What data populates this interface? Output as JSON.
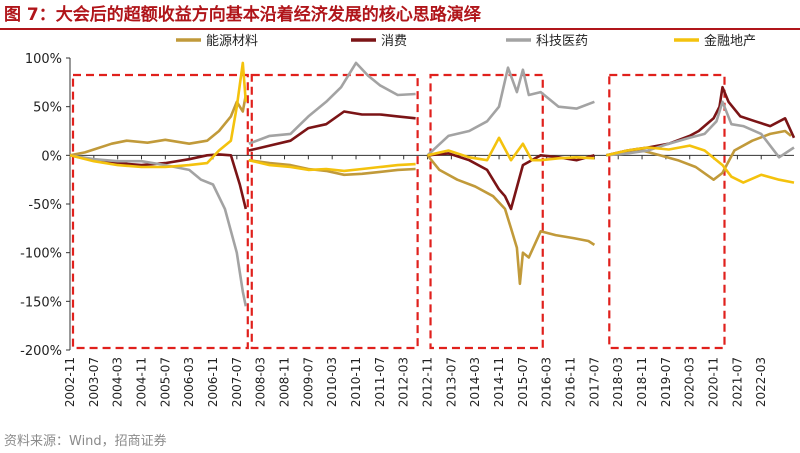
{
  "figure": {
    "title": "图 7：大会后的超额收益方向基本沿着经济发展的核心思路演绎",
    "source": "资料来源：Wind，招商证券"
  },
  "colors": {
    "title": "#b0151a",
    "box": "#e0201c"
  },
  "chart_data": {
    "type": "line",
    "title": "图 7：大会后的超额收益方向基本沿着经济发展的核心思路演绎",
    "xlabel": "",
    "ylabel": "",
    "ylim": [
      -200,
      100
    ],
    "y_ticks": [
      100,
      50,
      0,
      -50,
      -100,
      -150,
      -200
    ],
    "y_tick_labels": [
      "100%",
      "50%",
      "0%",
      "-50%",
      "-100%",
      "-150%",
      "-200%"
    ],
    "x_range": [
      "2002-11",
      "2023-02"
    ],
    "x_tick_labels": [
      "2002-11",
      "2003-07",
      "2004-03",
      "2004-11",
      "2005-07",
      "2006-03",
      "2006-11",
      "2007-07",
      "2008-03",
      "2008-11",
      "2009-07",
      "2010-03",
      "2010-11",
      "2011-07",
      "2012-03",
      "2012-11",
      "2013-07",
      "2014-03",
      "2014-11",
      "2015-07",
      "2016-03",
      "2016-11",
      "2017-07",
      "2018-03",
      "2018-11",
      "2019-07",
      "2020-03",
      "2020-11",
      "2021-07",
      "2022-03"
    ],
    "grid": false,
    "legend_position": "top",
    "legend_entries": [
      "能源材料",
      "消费",
      "科技医药",
      "金融地产"
    ],
    "highlight_windows": [
      {
        "start": "2002-11",
        "end": "2007-10"
      },
      {
        "start": "2007-11",
        "end": "2012-07"
      },
      {
        "start": "2012-11",
        "end": "2016-01"
      },
      {
        "start": "2017-11",
        "end": "2021-02"
      }
    ],
    "series": [
      {
        "name": "能源材料",
        "color": "#c19a3a",
        "segments": [
          [
            [
              "2002-11",
              0
            ],
            [
              "2003-04",
              3
            ],
            [
              "2003-07",
              6
            ],
            [
              "2004-01",
              12
            ],
            [
              "2004-06",
              15
            ],
            [
              "2005-01",
              13
            ],
            [
              "2005-07",
              16
            ],
            [
              "2006-03",
              12
            ],
            [
              "2006-09",
              15
            ],
            [
              "2007-01",
              25
            ],
            [
              "2007-05",
              40
            ],
            [
              "2007-07",
              55
            ],
            [
              "2007-09",
              45
            ],
            [
              "2007-10",
              62
            ]
          ],
          [
            [
              "2007-11",
              -5
            ],
            [
              "2008-06",
              -8
            ],
            [
              "2009-01",
              -10
            ],
            [
              "2009-07",
              -14
            ],
            [
              "2010-01",
              -16
            ],
            [
              "2010-07",
              -20
            ],
            [
              "2011-01",
              -19
            ],
            [
              "2011-07",
              -17
            ],
            [
              "2012-01",
              -15
            ],
            [
              "2012-07",
              -14
            ]
          ],
          [
            [
              "2012-11",
              0
            ],
            [
              "2013-03",
              -15
            ],
            [
              "2013-09",
              -25
            ],
            [
              "2014-03",
              -32
            ],
            [
              "2014-09",
              -42
            ],
            [
              "2015-01",
              -55
            ],
            [
              "2015-03",
              -75
            ],
            [
              "2015-05",
              -95
            ],
            [
              "2015-06",
              -132
            ],
            [
              "2015-07",
              -100
            ],
            [
              "2015-09",
              -105
            ],
            [
              "2016-01",
              -78
            ],
            [
              "2016-06",
              -82
            ],
            [
              "2016-12",
              -85
            ],
            [
              "2017-05",
              -88
            ],
            [
              "2017-07",
              -92
            ]
          ],
          [
            [
              "2017-11",
              0
            ],
            [
              "2018-05",
              3
            ],
            [
              "2018-11",
              5
            ],
            [
              "2019-05",
              0
            ],
            [
              "2019-11",
              -5
            ],
            [
              "2020-05",
              -12
            ],
            [
              "2020-11",
              -25
            ],
            [
              "2021-02",
              -18
            ],
            [
              "2021-06",
              5
            ],
            [
              "2021-12",
              15
            ],
            [
              "2022-06",
              22
            ],
            [
              "2022-11",
              25
            ],
            [
              "2023-01",
              20
            ]
          ]
        ]
      },
      {
        "name": "消费",
        "color": "#7b1416",
        "segments": [
          [
            [
              "2002-11",
              0
            ],
            [
              "2003-07",
              -5
            ],
            [
              "2004-03",
              -8
            ],
            [
              "2004-11",
              -10
            ],
            [
              "2005-07",
              -8
            ],
            [
              "2006-03",
              -4
            ],
            [
              "2006-09",
              0
            ],
            [
              "2007-01",
              1
            ],
            [
              "2007-05",
              0
            ],
            [
              "2007-08",
              -30
            ],
            [
              "2007-10",
              -55
            ]
          ],
          [
            [
              "2007-11",
              5
            ],
            [
              "2008-06",
              10
            ],
            [
              "2009-01",
              15
            ],
            [
              "2009-07",
              28
            ],
            [
              "2010-01",
              32
            ],
            [
              "2010-07",
              45
            ],
            [
              "2011-01",
              42
            ],
            [
              "2011-07",
              42
            ],
            [
              "2012-01",
              40
            ],
            [
              "2012-07",
              38
            ]
          ],
          [
            [
              "2012-11",
              0
            ],
            [
              "2013-06",
              2
            ],
            [
              "2014-01",
              -5
            ],
            [
              "2014-07",
              -15
            ],
            [
              "2014-11",
              -35
            ],
            [
              "2015-01",
              -42
            ],
            [
              "2015-03",
              -55
            ],
            [
              "2015-07",
              -10
            ],
            [
              "2016-01",
              0
            ],
            [
              "2016-07",
              -2
            ],
            [
              "2017-01",
              -5
            ],
            [
              "2017-07",
              0
            ]
          ],
          [
            [
              "2017-11",
              0
            ],
            [
              "2018-06",
              5
            ],
            [
              "2019-01",
              8
            ],
            [
              "2019-08",
              12
            ],
            [
              "2020-03",
              20
            ],
            [
              "2020-06",
              25
            ],
            [
              "2020-11",
              38
            ],
            [
              "2021-01",
              50
            ],
            [
              "2021-02",
              70
            ],
            [
              "2021-04",
              55
            ],
            [
              "2021-08",
              40
            ],
            [
              "2022-01",
              35
            ],
            [
              "2022-06",
              30
            ],
            [
              "2022-11",
              38
            ],
            [
              "2023-02",
              18
            ]
          ]
        ]
      },
      {
        "name": "科技医药",
        "color": "#a3a3a3",
        "segments": [
          [
            [
              "2002-11",
              0
            ],
            [
              "2003-07",
              -4
            ],
            [
              "2004-03",
              -6
            ],
            [
              "2004-11",
              -6
            ],
            [
              "2005-07",
              -10
            ],
            [
              "2006-03",
              -15
            ],
            [
              "2006-07",
              -25
            ],
            [
              "2006-11",
              -30
            ],
            [
              "2007-03",
              -55
            ],
            [
              "2007-07",
              -100
            ],
            [
              "2007-09",
              -140
            ],
            [
              "2007-10",
              -155
            ]
          ],
          [
            [
              "2007-11",
              12
            ],
            [
              "2008-06",
              20
            ],
            [
              "2009-01",
              22
            ],
            [
              "2009-07",
              40
            ],
            [
              "2010-01",
              55
            ],
            [
              "2010-06",
              70
            ],
            [
              "2010-11",
              95
            ],
            [
              "2011-03",
              82
            ],
            [
              "2011-07",
              72
            ],
            [
              "2012-01",
              62
            ],
            [
              "2012-07",
              63
            ]
          ],
          [
            [
              "2012-11",
              0
            ],
            [
              "2013-06",
              20
            ],
            [
              "2014-01",
              25
            ],
            [
              "2014-07",
              35
            ],
            [
              "2014-11",
              50
            ],
            [
              "2015-02",
              90
            ],
            [
              "2015-05",
              65
            ],
            [
              "2015-07",
              88
            ],
            [
              "2015-09",
              62
            ],
            [
              "2016-01",
              65
            ],
            [
              "2016-07",
              50
            ],
            [
              "2017-01",
              48
            ],
            [
              "2017-07",
              55
            ]
          ],
          [
            [
              "2017-11",
              0
            ],
            [
              "2018-06",
              2
            ],
            [
              "2019-01",
              5
            ],
            [
              "2019-08",
              12
            ],
            [
              "2020-03",
              18
            ],
            [
              "2020-08",
              22
            ],
            [
              "2020-12",
              35
            ],
            [
              "2021-02",
              55
            ],
            [
              "2021-05",
              32
            ],
            [
              "2021-09",
              30
            ],
            [
              "2022-03",
              22
            ],
            [
              "2022-09",
              -2
            ],
            [
              "2023-02",
              8
            ]
          ]
        ]
      },
      {
        "name": "金融地产",
        "color": "#f4c20d",
        "segments": [
          [
            [
              "2002-11",
              0
            ],
            [
              "2003-07",
              -6
            ],
            [
              "2004-03",
              -10
            ],
            [
              "2004-11",
              -12
            ],
            [
              "2005-07",
              -12
            ],
            [
              "2006-03",
              -10
            ],
            [
              "2006-09",
              -8
            ],
            [
              "2007-01",
              5
            ],
            [
              "2007-05",
              15
            ],
            [
              "2007-07",
              50
            ],
            [
              "2007-09",
              95
            ],
            [
              "2007-10",
              55
            ]
          ],
          [
            [
              "2007-11",
              -5
            ],
            [
              "2008-06",
              -10
            ],
            [
              "2009-01",
              -12
            ],
            [
              "2009-07",
              -15
            ],
            [
              "2010-01",
              -14
            ],
            [
              "2010-07",
              -16
            ],
            [
              "2011-01",
              -14
            ],
            [
              "2011-07",
              -12
            ],
            [
              "2012-01",
              -10
            ],
            [
              "2012-07",
              -9
            ]
          ],
          [
            [
              "2012-11",
              0
            ],
            [
              "2013-06",
              5
            ],
            [
              "2014-01",
              -2
            ],
            [
              "2014-07",
              -5
            ],
            [
              "2014-11",
              18
            ],
            [
              "2015-03",
              -5
            ],
            [
              "2015-07",
              12
            ],
            [
              "2015-10",
              -5
            ],
            [
              "2016-01",
              -5
            ],
            [
              "2016-07",
              -3
            ],
            [
              "2017-01",
              -2
            ],
            [
              "2017-07",
              -3
            ]
          ],
          [
            [
              "2017-11",
              0
            ],
            [
              "2018-06",
              5
            ],
            [
              "2019-01",
              8
            ],
            [
              "2019-08",
              6
            ],
            [
              "2020-03",
              10
            ],
            [
              "2020-08",
              5
            ],
            [
              "2020-12",
              -5
            ],
            [
              "2021-02",
              -10
            ],
            [
              "2021-05",
              -22
            ],
            [
              "2021-09",
              -28
            ],
            [
              "2022-03",
              -20
            ],
            [
              "2022-09",
              -25
            ],
            [
              "2023-02",
              -28
            ]
          ]
        ]
      }
    ]
  }
}
